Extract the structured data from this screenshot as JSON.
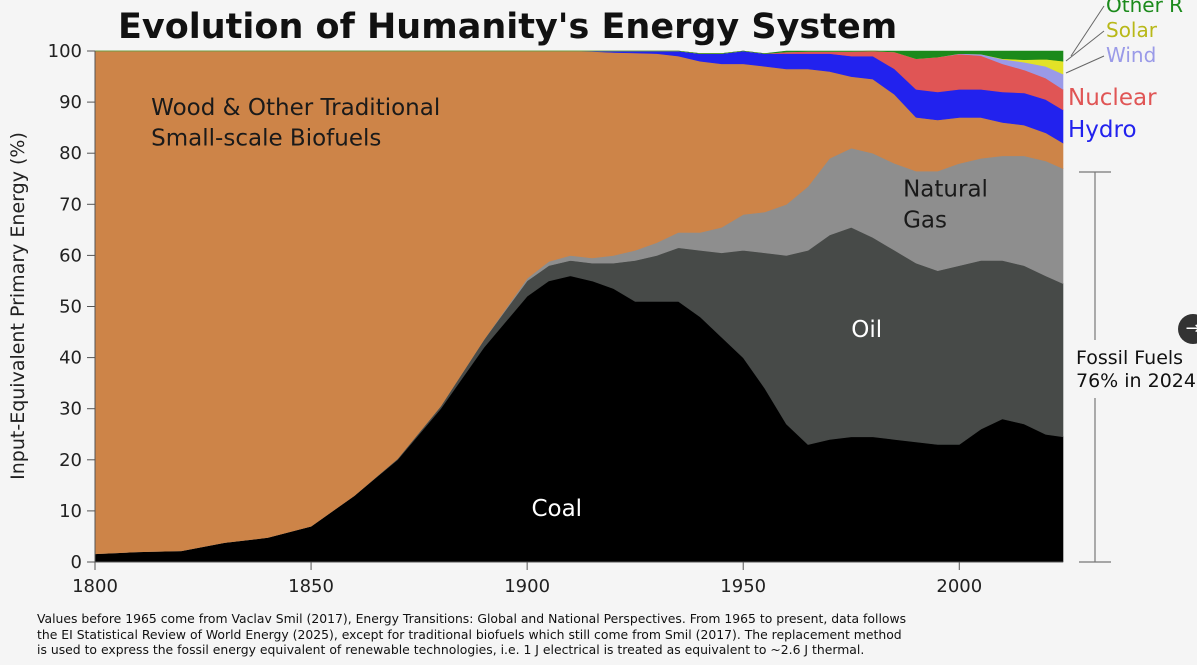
{
  "chart_data": {
    "type": "area",
    "stacked": true,
    "percent": true,
    "title": "Evolution of Humanity's Energy System",
    "ylabel": "Input-Equivalent Primary Energy (%)",
    "xlabel": "",
    "xlim": [
      1800,
      2024
    ],
    "ylim": [
      0,
      100
    ],
    "x_ticks": [
      "1800",
      "1850",
      "1900",
      "1950",
      "2000"
    ],
    "y_ticks": [
      "0",
      "10",
      "20",
      "30",
      "40",
      "50",
      "60",
      "70",
      "80",
      "90",
      "100"
    ],
    "x": [
      1800,
      1810,
      1820,
      1830,
      1840,
      1850,
      1860,
      1870,
      1880,
      1890,
      1900,
      1905,
      1910,
      1915,
      1920,
      1925,
      1930,
      1935,
      1940,
      1945,
      1950,
      1955,
      1960,
      1965,
      1970,
      1975,
      1980,
      1985,
      1990,
      1995,
      2000,
      2005,
      2010,
      2015,
      2020,
      2024
    ],
    "series": [
      {
        "name": "Coal",
        "color": "#000000",
        "values": [
          1.6,
          2.0,
          2.2,
          3.8,
          4.8,
          7.0,
          13.0,
          20.0,
          30.0,
          42.0,
          52.0,
          55.0,
          56.0,
          55.0,
          53.5,
          51.0,
          51.0,
          51.0,
          48.0,
          44.0,
          40.0,
          34.0,
          27.0,
          23.0,
          24.0,
          24.5,
          24.5,
          24.0,
          23.5,
          23.0,
          23.0,
          26.0,
          28.0,
          27.0,
          25.0,
          24.5
        ]
      },
      {
        "name": "Oil",
        "color": "#474a48",
        "values": [
          0,
          0,
          0,
          0,
          0,
          0,
          0,
          0.2,
          0.5,
          1.5,
          3.0,
          3.0,
          3.0,
          3.5,
          5.0,
          8.0,
          9.0,
          10.5,
          13.0,
          16.5,
          21.0,
          26.5,
          33.0,
          38.0,
          40.0,
          41.0,
          39.0,
          37.0,
          35.0,
          34.0,
          35.0,
          33.0,
          31.0,
          31.0,
          31.0,
          30.0
        ]
      },
      {
        "name": "Natural Gas",
        "color": "#8e8e8e",
        "values": [
          0,
          0,
          0,
          0,
          0,
          0,
          0,
          0,
          0,
          0,
          0.5,
          0.8,
          1.0,
          1.0,
          1.5,
          2.0,
          2.5,
          3.0,
          3.5,
          5.0,
          7.0,
          8.0,
          10.0,
          12.5,
          15.0,
          15.5,
          16.5,
          17.0,
          18.0,
          19.5,
          20.0,
          20.0,
          20.5,
          21.5,
          22.5,
          22.5
        ]
      },
      {
        "name": "Wood & Other Traditional Small-scale Biofuels",
        "color": "#cd8448",
        "values": [
          98.4,
          98.0,
          97.8,
          96.2,
          95.2,
          93.0,
          87.0,
          79.8,
          69.5,
          56.5,
          44.5,
          41.2,
          40.0,
          40.4,
          39.7,
          38.6,
          37.0,
          34.5,
          33.5,
          32.0,
          29.5,
          28.5,
          26.5,
          23.0,
          17.0,
          14.0,
          14.5,
          13.5,
          10.5,
          10.0,
          9.0,
          8.0,
          6.5,
          6.0,
          5.5,
          5.0
        ]
      },
      {
        "name": "Hydro",
        "color": "#2222ee",
        "values": [
          0,
          0,
          0,
          0,
          0,
          0,
          0,
          0,
          0,
          0,
          0,
          0,
          0,
          0.1,
          0.3,
          0.4,
          0.5,
          1.0,
          1.5,
          2.0,
          2.5,
          2.5,
          3.0,
          3.0,
          3.5,
          4.0,
          4.5,
          5.0,
          5.5,
          5.5,
          5.5,
          5.5,
          6.0,
          6.3,
          6.5,
          6.5
        ]
      },
      {
        "name": "Nuclear",
        "color": "#e05555",
        "values": [
          0,
          0,
          0,
          0,
          0,
          0,
          0,
          0,
          0,
          0,
          0,
          0,
          0,
          0,
          0,
          0,
          0,
          0,
          0,
          0,
          0,
          0,
          0.3,
          0.4,
          0.4,
          0.9,
          1.8,
          3.3,
          6.0,
          6.8,
          6.9,
          6.6,
          5.5,
          4.5,
          4.2,
          4.0
        ]
      },
      {
        "name": "Wind",
        "color": "#9a9ae8",
        "values": [
          0,
          0,
          0,
          0,
          0,
          0,
          0,
          0,
          0,
          0,
          0,
          0,
          0,
          0,
          0,
          0,
          0,
          0,
          0,
          0,
          0,
          0,
          0,
          0,
          0,
          0,
          0,
          0,
          0,
          0,
          0.1,
          0.3,
          0.9,
          1.5,
          2.3,
          3.0
        ]
      },
      {
        "name": "Solar",
        "color": "#e2e227",
        "values": [
          0,
          0,
          0,
          0,
          0,
          0,
          0,
          0,
          0,
          0,
          0,
          0,
          0,
          0,
          0,
          0,
          0,
          0,
          0,
          0,
          0,
          0,
          0,
          0,
          0,
          0,
          0,
          0,
          0,
          0,
          0,
          0,
          0.1,
          0.5,
          1.4,
          2.5
        ]
      },
      {
        "name": "Other Renewables",
        "color": "#1b8a1b",
        "values": [
          0,
          0,
          0,
          0,
          0,
          0,
          0,
          0,
          0,
          0,
          0,
          0,
          0,
          0,
          0,
          0,
          0,
          0,
          0,
          0,
          0,
          0,
          0.2,
          0.1,
          0.1,
          0.1,
          0.2,
          0.2,
          1.5,
          1.2,
          0.5,
          0.6,
          1.5,
          1.7,
          1.6,
          2.0
        ]
      }
    ],
    "area_labels": [
      {
        "text": "Wood & Other Traditional",
        "x": 1813,
        "y": 87.5,
        "color": "#1a1a1a"
      },
      {
        "text": "Small-scale Biofuels",
        "x": 1813,
        "y": 81.5,
        "color": "#1a1a1a"
      },
      {
        "text": "Natural",
        "x": 1987,
        "y": 71.5,
        "color": "#1a1a1a"
      },
      {
        "text": "Gas",
        "x": 1987,
        "y": 65.5,
        "color": "#1a1a1a"
      },
      {
        "text": "Oil",
        "x": 1975,
        "y": 44,
        "color": "#ffffff"
      },
      {
        "text": "Coal",
        "x": 1901,
        "y": 9,
        "color": "#ffffff"
      }
    ],
    "legend": [
      {
        "text": "Other R",
        "color": "#1b8a1b"
      },
      {
        "text": "Solar",
        "color": "#b8b818"
      },
      {
        "text": "Wind",
        "color": "#9a9ae8"
      },
      {
        "text": "Nuclear",
        "color": "#e05555"
      },
      {
        "text": "Hydro",
        "color": "#2222ee"
      }
    ],
    "bracket_label": [
      "Fossil Fuels",
      "76% in 2024"
    ]
  },
  "caption": "Values before 1965 come from Vaclav Smil (2017), Energy Transitions: Global and National Perspectives.  From 1965 to present, data follows\nthe EI Statistical Review of World Energy (2025), except for traditional biofuels which still come from Smil (2017).  The replacement method\nis used to express the fossil energy equivalent of renewable technologies, i.e. 1 J electrical is treated as equivalent to ~2.6 J thermal.",
  "scroll_button": "→"
}
